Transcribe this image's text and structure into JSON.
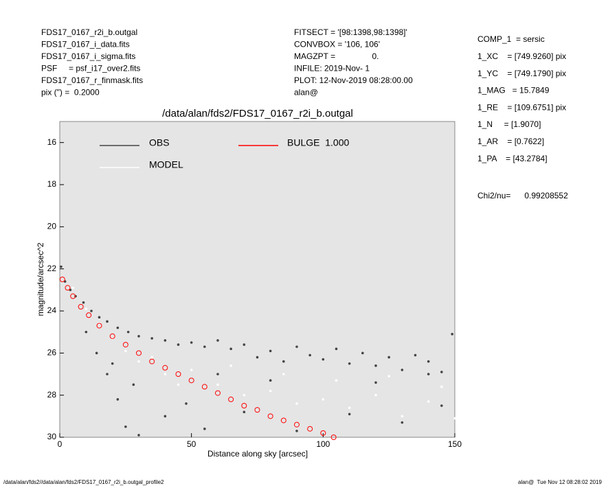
{
  "chart_data": {
    "type": "scatter",
    "header_left": [
      "FDS17_0167_r2i_b.outgal",
      "FDS17_0167_i_data.fits",
      "FDS17_0167_i_sigma.fits",
      "PSF     = psf_i17_over2.fits",
      "FDS17_0167_r_finmask.fits",
      "pix (\") =  0.2000"
    ],
    "header_middle": [
      "FITSECT = '[98:1398,98:1398]'",
      "CONVBOX = '106, 106'",
      "MAGZPT =                0.",
      "INFILE: 2019-Nov- 1",
      "PLOT: 12-Nov-2019 08:28:00.00",
      "alan@"
    ],
    "header_right": [
      "COMP_1  = sersic",
      "1_XC    = [749.9260] pix",
      "1_YC    = [749.1790] pix",
      "1_MAG   = 15.7849",
      "1_RE    = [109.6751] pix",
      "1_N     = [1.9070]",
      "1_AR    = [0.7622]",
      "1_PA    = [43.2784]"
    ],
    "chi2": "Chi2/nu=      0.99208552",
    "title": "/data/alan/fds2/FDS17_0167_r2i_b.outgal",
    "xlabel": "Distance along sky [arcsec]",
    "ylabel": "magnitude/arcsec^2",
    "footer_left": "/data/alan/fds2//data/alan/fds2/FDS17_0167_r2i_b.outgal_profile2",
    "footer_right": "alan@  Tue Nov 12 08:28:02 2019",
    "xlim": [
      0,
      150
    ],
    "xticks": [
      0,
      50,
      100,
      150
    ],
    "ylim": [
      30,
      15
    ],
    "yticks": [
      16,
      18,
      20,
      22,
      24,
      26,
      28,
      30
    ],
    "series": [
      {
        "name": "OBS",
        "color": "#444444",
        "x": [
          0.5,
          2,
          4,
          6,
          9,
          12,
          15,
          18,
          22,
          26,
          30,
          35,
          40,
          45,
          50,
          55,
          60,
          65,
          70,
          75,
          80,
          85,
          90,
          95,
          100,
          105,
          110,
          115,
          120,
          125,
          130,
          135,
          140,
          145,
          149,
          10,
          14,
          18,
          22,
          25,
          30,
          20,
          28,
          40,
          55,
          48,
          70,
          90,
          110,
          130,
          145,
          60,
          80,
          120,
          140
        ],
        "values": [
          21.9,
          22.6,
          23.0,
          23.3,
          23.6,
          24.0,
          24.3,
          24.5,
          24.8,
          25.0,
          25.2,
          25.3,
          25.4,
          25.6,
          25.5,
          25.7,
          25.4,
          25.8,
          25.6,
          26.2,
          25.9,
          26.4,
          25.7,
          26.1,
          26.3,
          25.8,
          26.5,
          26.0,
          26.6,
          26.2,
          26.8,
          26.1,
          26.4,
          26.9,
          25.1,
          25.0,
          26.0,
          27.0,
          28.2,
          29.5,
          29.9,
          26.5,
          27.5,
          29.0,
          29.6,
          28.4,
          28.8,
          29.7,
          28.9,
          29.3,
          28.5,
          27.0,
          27.3,
          27.4,
          27.0
        ]
      },
      {
        "name": "MODEL",
        "color": "#ffffff",
        "x": [
          5,
          10,
          15,
          20,
          25,
          30,
          40,
          50,
          60,
          70,
          80,
          90,
          100,
          110,
          120,
          130,
          140,
          150,
          35,
          45,
          65,
          85,
          105,
          125,
          145
        ],
        "values": [
          22.9,
          23.9,
          24.6,
          25.3,
          25.9,
          26.4,
          27.0,
          26.8,
          27.5,
          28.0,
          27.8,
          28.4,
          28.2,
          28.6,
          28.0,
          29.0,
          28.3,
          29.1,
          26.2,
          27.5,
          26.6,
          27.0,
          27.3,
          27.1,
          27.6
        ]
      },
      {
        "name": "BULGE  1.000",
        "color": "#ff0000",
        "x": [
          1,
          3,
          5,
          8,
          11,
          15,
          20,
          25,
          30,
          35,
          40,
          45,
          50,
          55,
          60,
          65,
          70,
          75,
          80,
          85,
          90,
          95,
          100,
          104
        ],
        "values": [
          22.5,
          22.9,
          23.3,
          23.8,
          24.2,
          24.7,
          25.2,
          25.6,
          26.0,
          26.4,
          26.7,
          27.0,
          27.3,
          27.6,
          27.9,
          28.2,
          28.5,
          28.7,
          29.0,
          29.2,
          29.4,
          29.6,
          29.8,
          30.0
        ]
      }
    ]
  }
}
